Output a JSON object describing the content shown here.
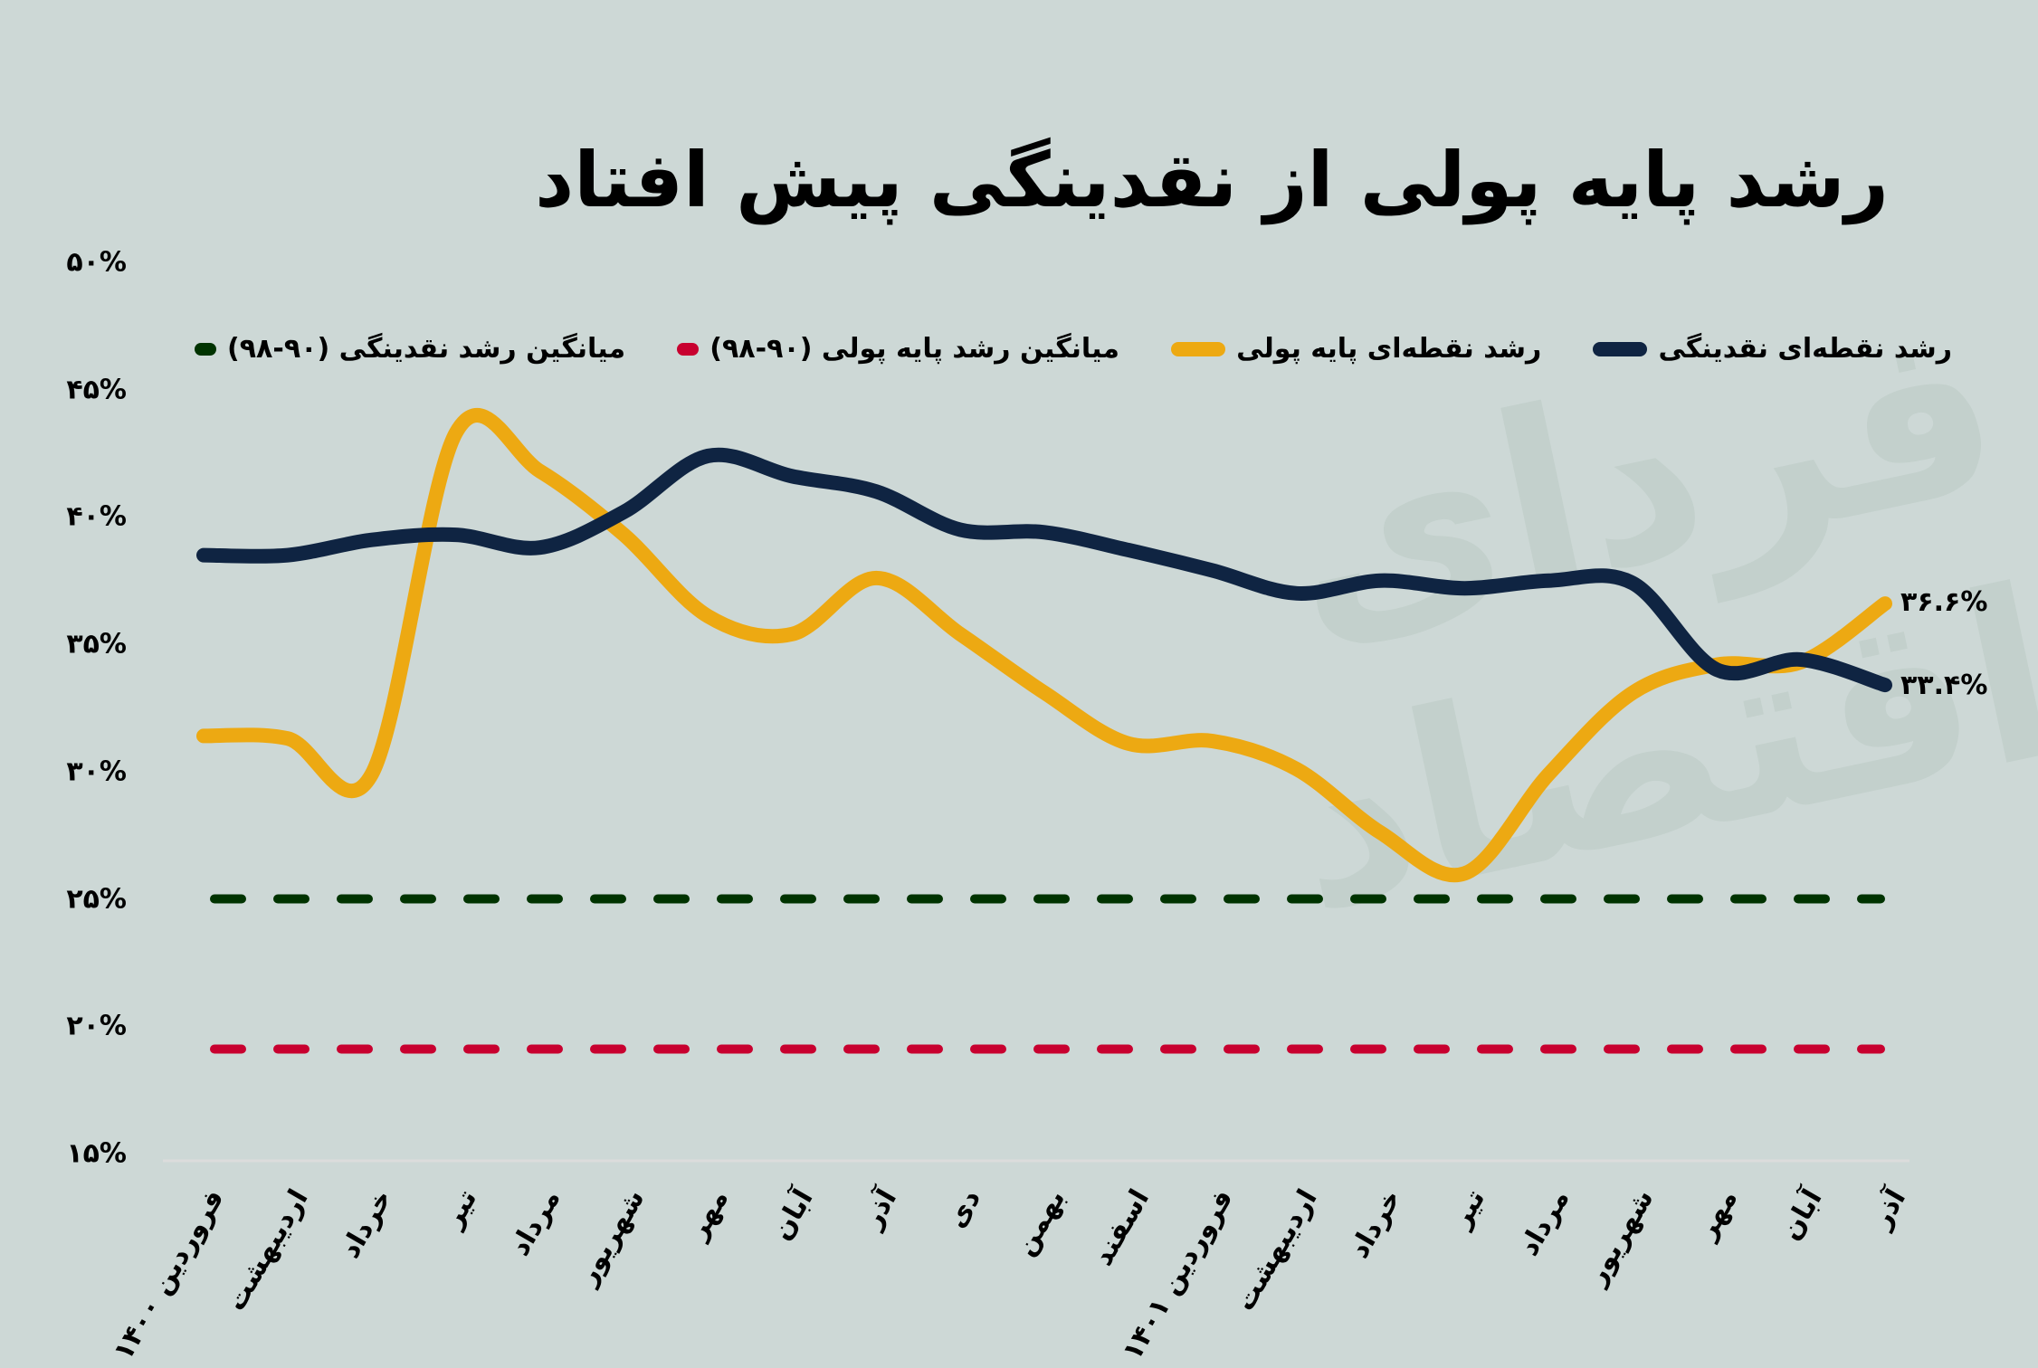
{
  "chart_data": {
    "type": "line",
    "title": "رشد پایه پولی از نقدینگی پیش افتاد",
    "xlabel": "",
    "ylabel": "",
    "ylim": [
      15,
      50
    ],
    "yticks": [
      "۵۰%",
      "۴۵%",
      "۴۰%",
      "۳۵%",
      "۳۰%",
      "۲۵%",
      "۲۰%",
      "۱۵%"
    ],
    "ytick_values": [
      50,
      45,
      40,
      35,
      30,
      25,
      20,
      15
    ],
    "categories": [
      "فروردین ۱۴۰۰",
      "اردیبهشت",
      "خرداد",
      "تیر",
      "مرداد",
      "شهریور",
      "مهر",
      "آبان",
      "آذر",
      "دی",
      "بهمن",
      "اسفند",
      "فروردین ۱۴۰۱",
      "اردیبهشت",
      "خرداد",
      "تیر",
      "مرداد",
      "شهریور",
      "مهر",
      "آبان",
      "آذر"
    ],
    "series": [
      {
        "name": "رشد نقطه‌ای نقدینگی",
        "color": "#0f2442",
        "style": "solid",
        "values": [
          38.5,
          38.5,
          39.1,
          39.3,
          38.8,
          40.2,
          42.4,
          41.6,
          41.0,
          39.5,
          39.4,
          38.7,
          37.9,
          37.0,
          37.5,
          37.2,
          37.5,
          37.4,
          34.0,
          34.4,
          33.4
        ]
      },
      {
        "name": "رشد نقطه‌ای پایه پولی",
        "color": "#eda912",
        "style": "solid",
        "values": [
          31.4,
          31.3,
          29.9,
          43.3,
          41.8,
          39.3,
          36.1,
          35.4,
          37.6,
          35.4,
          33.1,
          31.1,
          31.2,
          30.1,
          27.6,
          26.0,
          29.9,
          33.1,
          34.2,
          34.3,
          36.6
        ]
      },
      {
        "name": "میانگین رشد پایه پولی (۹۰-۹۸)",
        "color": "#c8002f",
        "style": "dashed",
        "values": [
          19.1,
          19.1,
          19.1,
          19.1,
          19.1,
          19.1,
          19.1,
          19.1,
          19.1,
          19.1,
          19.1,
          19.1,
          19.1,
          19.1,
          19.1,
          19.1,
          19.1,
          19.1,
          19.1,
          19.1,
          19.1
        ]
      },
      {
        "name": "میانگین رشد نقدینگی (۹۰-۹۸)",
        "color": "#003300",
        "style": "dashed",
        "values": [
          25.0,
          25.0,
          25.0,
          25.0,
          25.0,
          25.0,
          25.0,
          25.0,
          25.0,
          25.0,
          25.0,
          25.0,
          25.0,
          25.0,
          25.0,
          25.0,
          25.0,
          25.0,
          25.0,
          25.0,
          25.0
        ]
      }
    ],
    "annotations": [
      {
        "text": "۳۶.۶%",
        "series": "رشد نقطه‌ای پایه پولی",
        "index": 20
      },
      {
        "text": "۳۳.۴%",
        "series": "رشد نقطه‌ای نقدینگی",
        "index": 20
      }
    ],
    "legend_position": "top",
    "grid": false
  },
  "title": "رشد پایه پولی از نقدینگی پیش افتاد",
  "legend": [
    {
      "label": "میانگین رشد نقدینگی (۹۰-۹۸)",
      "color": "#003300"
    },
    {
      "label": "میانگین رشد پایه پولی (۹۰-۹۸)",
      "color": "#c8002f"
    },
    {
      "label": "رشد نقطه‌ای پایه پولی",
      "color": "#eda912"
    },
    {
      "label": "رشد نقطه‌ای نقدینگی",
      "color": "#0f2442"
    }
  ],
  "end_labels": {
    "base_money": "۳۶.۶%",
    "liquidity": "۳۳.۴%"
  },
  "watermark": "فردای اقتصاد"
}
